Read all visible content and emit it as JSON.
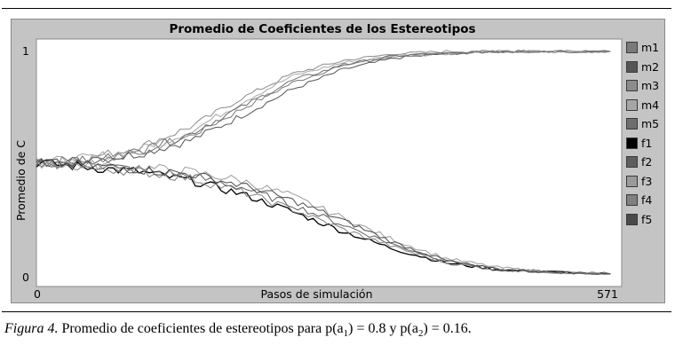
{
  "chart_data": {
    "type": "line",
    "title": "Promedio de Coeficientes de los Estereotipos",
    "xlabel": "Pasos de simulación",
    "ylabel": "Promedio de C",
    "xlim": [
      0,
      571
    ],
    "ylim": [
      0,
      1
    ],
    "x_tick_labels": [
      "0",
      "571"
    ],
    "y_tick_labels": [
      "0",
      "1"
    ],
    "grid": false,
    "legend_position": "right",
    "series": [
      {
        "name": "m1",
        "color": "#7a7a7a",
        "x": [
          0,
          50,
          100,
          150,
          200,
          250,
          300,
          350,
          400,
          450,
          500,
          560
        ],
        "values": [
          0.5,
          0.51,
          0.55,
          0.62,
          0.74,
          0.86,
          0.94,
          0.98,
          0.99,
          1.0,
          1.0,
          1.0
        ]
      },
      {
        "name": "m2",
        "color": "#555555",
        "x": [
          0,
          50,
          100,
          150,
          200,
          250,
          300,
          350,
          400,
          450,
          500,
          560
        ],
        "values": [
          0.5,
          0.51,
          0.54,
          0.6,
          0.71,
          0.83,
          0.92,
          0.97,
          0.99,
          1.0,
          1.0,
          1.0
        ]
      },
      {
        "name": "m3",
        "color": "#8c8c8c",
        "x": [
          0,
          50,
          100,
          150,
          200,
          250,
          300,
          350,
          400,
          450,
          500,
          560
        ],
        "values": [
          0.5,
          0.52,
          0.57,
          0.66,
          0.79,
          0.9,
          0.96,
          0.99,
          1.0,
          1.0,
          1.0,
          1.0
        ]
      },
      {
        "name": "m4",
        "color": "#a6a6a6",
        "x": [
          0,
          50,
          100,
          150,
          200,
          250,
          300,
          350,
          400,
          450,
          500,
          560
        ],
        "values": [
          0.5,
          0.52,
          0.56,
          0.64,
          0.77,
          0.89,
          0.95,
          0.98,
          0.99,
          1.0,
          1.0,
          1.0
        ]
      },
      {
        "name": "m5",
        "color": "#6e6e6e",
        "x": [
          0,
          50,
          100,
          150,
          200,
          250,
          300,
          350,
          400,
          450,
          500,
          560
        ],
        "values": [
          0.5,
          0.51,
          0.55,
          0.63,
          0.75,
          0.87,
          0.94,
          0.98,
          0.99,
          1.0,
          1.0,
          1.0
        ]
      },
      {
        "name": "f1",
        "color": "#000000",
        "x": [
          0,
          50,
          100,
          150,
          200,
          250,
          300,
          350,
          400,
          450,
          500,
          560
        ],
        "values": [
          0.5,
          0.48,
          0.46,
          0.42,
          0.36,
          0.28,
          0.19,
          0.11,
          0.05,
          0.02,
          0.01,
          0.0
        ]
      },
      {
        "name": "f2",
        "color": "#5e5e5e",
        "x": [
          0,
          50,
          100,
          150,
          200,
          250,
          300,
          350,
          400,
          450,
          500,
          560
        ],
        "values": [
          0.5,
          0.49,
          0.47,
          0.44,
          0.39,
          0.31,
          0.22,
          0.13,
          0.06,
          0.02,
          0.01,
          0.0
        ]
      },
      {
        "name": "f3",
        "color": "#9a9a9a",
        "x": [
          0,
          50,
          100,
          150,
          200,
          250,
          300,
          350,
          400,
          450,
          500,
          560
        ],
        "values": [
          0.5,
          0.49,
          0.48,
          0.46,
          0.42,
          0.35,
          0.25,
          0.15,
          0.07,
          0.03,
          0.01,
          0.0
        ]
      },
      {
        "name": "f4",
        "color": "#808080",
        "x": [
          0,
          50,
          100,
          150,
          200,
          250,
          300,
          350,
          400,
          450,
          500,
          560
        ],
        "values": [
          0.5,
          0.48,
          0.46,
          0.43,
          0.37,
          0.29,
          0.2,
          0.12,
          0.05,
          0.02,
          0.01,
          0.0
        ]
      },
      {
        "name": "f5",
        "color": "#4a4a4a",
        "x": [
          0,
          50,
          100,
          150,
          200,
          250,
          300,
          350,
          400,
          450,
          500,
          560
        ],
        "values": [
          0.5,
          0.49,
          0.47,
          0.45,
          0.4,
          0.33,
          0.24,
          0.14,
          0.06,
          0.02,
          0.01,
          0.0
        ]
      }
    ]
  },
  "caption": {
    "figure_label": "Figura 4.",
    "text_before": " Promedio de coeficientes de estereotipos para p(a",
    "sub1": "1",
    "text_middle": ") = 0.8 y p(a",
    "sub2": "2",
    "text_after": ") = 0.16."
  }
}
